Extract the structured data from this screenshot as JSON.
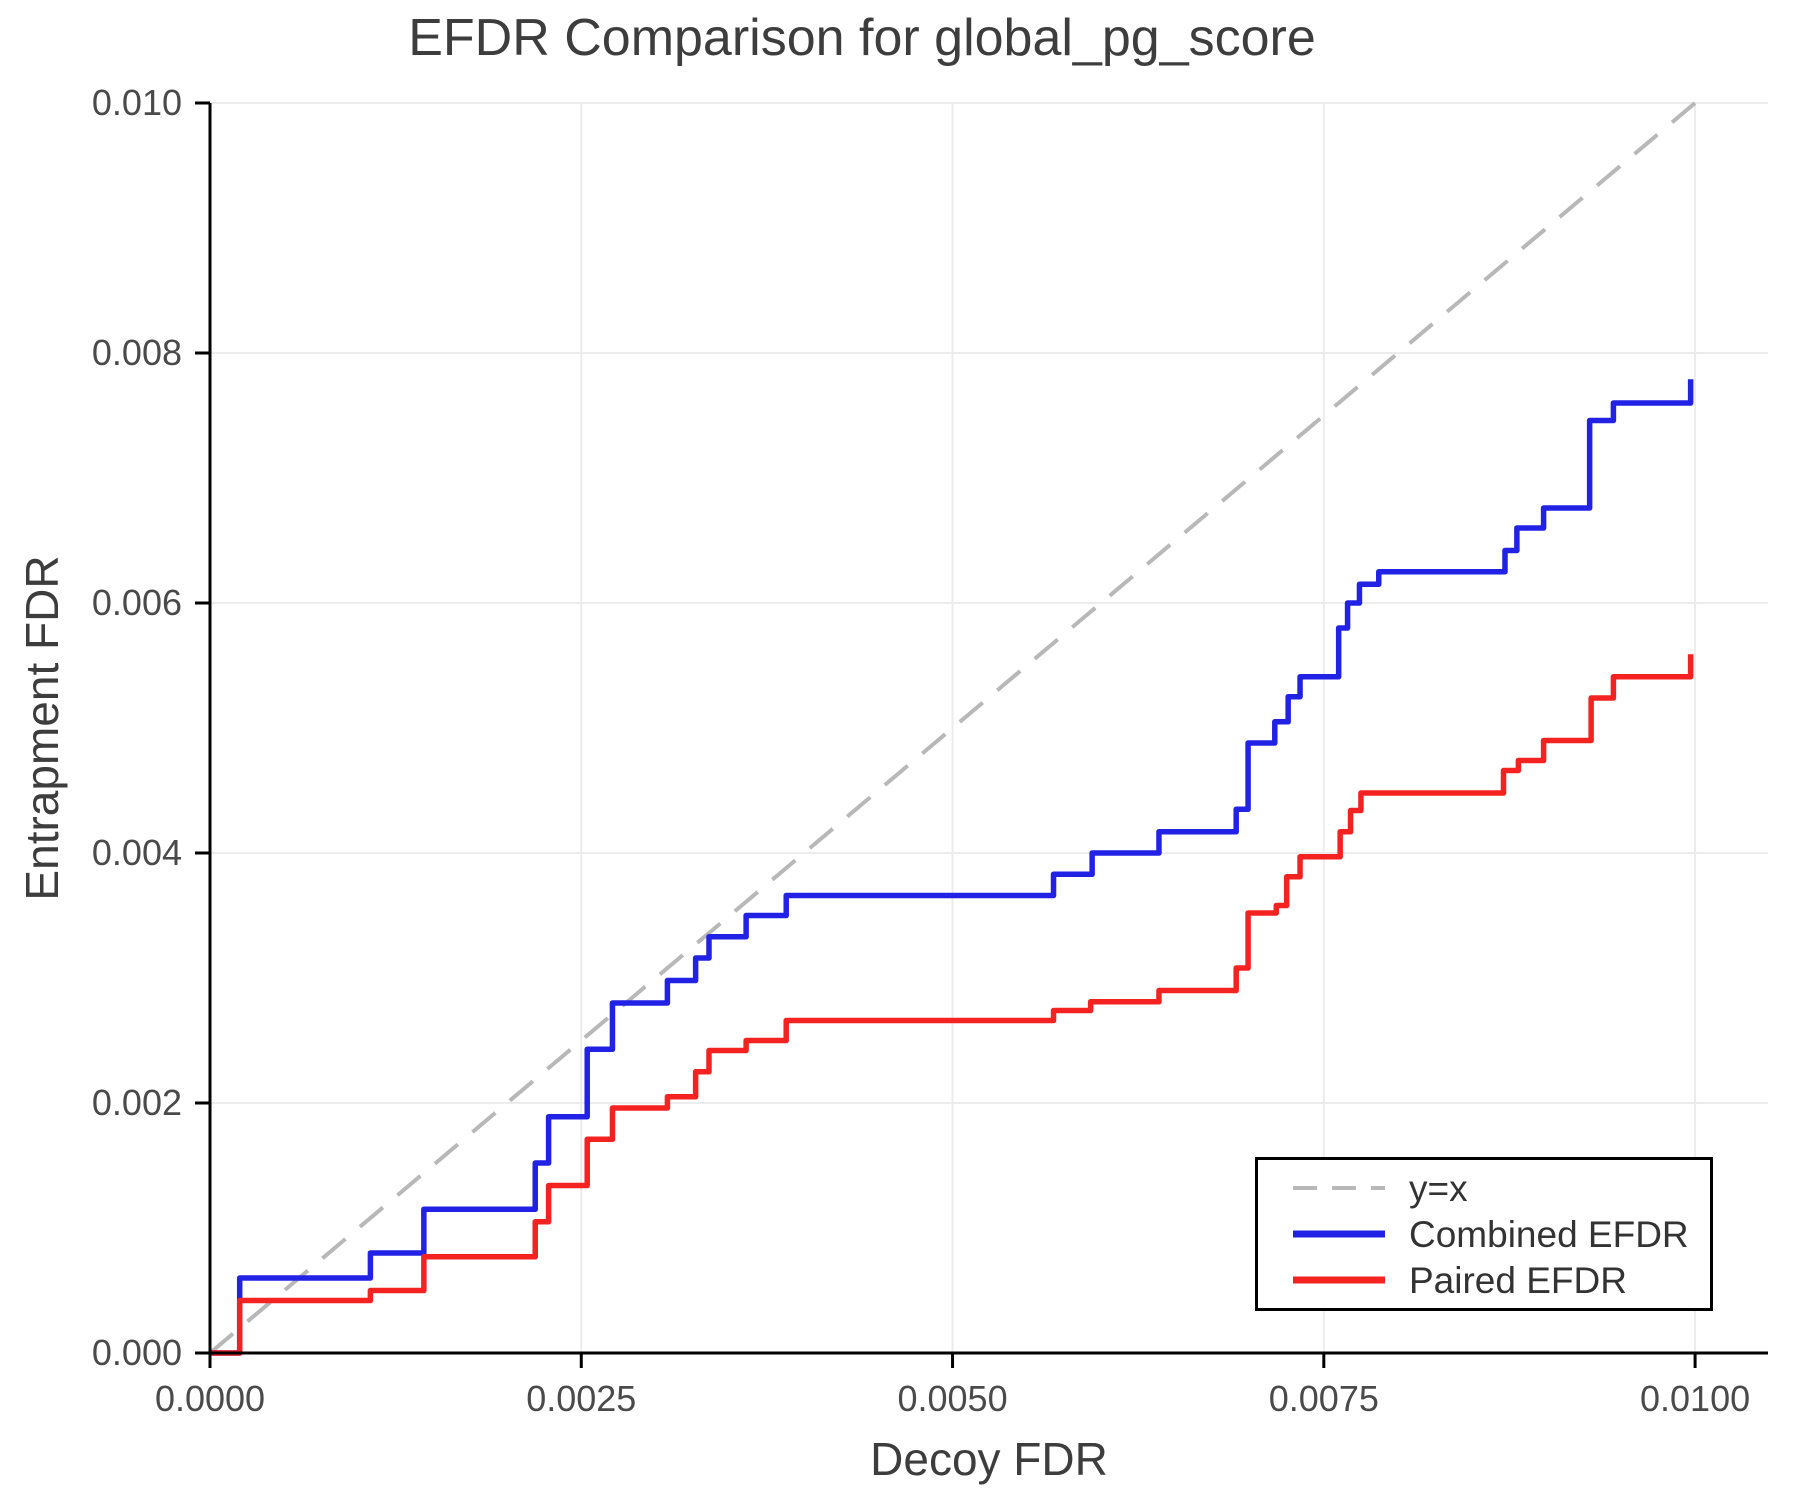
{
  "colors": {
    "combined": "#2222e6",
    "paired": "#f52222",
    "identity": "#b8b8b8",
    "grid": "#ececec",
    "spine": "#000000",
    "tick_label": "#4a4a4a"
  },
  "legend": {
    "items": [
      {
        "label": "y=x"
      },
      {
        "label": "Combined EFDR"
      },
      {
        "label": "Paired EFDR"
      }
    ]
  },
  "chart_data": {
    "type": "line",
    "title": "EFDR Comparison for global_pg_score",
    "xlabel": "Decoy FDR",
    "ylabel": "Entrapment FDR",
    "xlim": [
      0,
      0.0105
    ],
    "ylim": [
      0,
      0.01
    ],
    "grid": true,
    "legend_position": "lower right",
    "xticks": {
      "values": [
        0,
        0.0025,
        0.005,
        0.0075,
        0.01
      ],
      "labels": [
        "0.0000",
        "0.0025",
        "0.0050",
        "0.0075",
        "0.0100"
      ]
    },
    "yticks": {
      "values": [
        0,
        0.002,
        0.004,
        0.006,
        0.008,
        0.01
      ],
      "labels": [
        "0.000",
        "0.002",
        "0.004",
        "0.006",
        "0.008",
        "0.010"
      ]
    },
    "series": [
      {
        "name": "y=x",
        "style": "dashed",
        "color_key": "identity",
        "points": [
          [
            0,
            0
          ],
          [
            0.01,
            0.01
          ]
        ]
      },
      {
        "name": "Combined EFDR",
        "style": "step",
        "color_key": "combined",
        "steps": [
          [
            0,
            0
          ],
          [
            0.0002,
            0.0006
          ],
          [
            0.00108,
            0.0008
          ],
          [
            0.00144,
            0.00115
          ],
          [
            0.00219,
            0.00152
          ],
          [
            0.00228,
            0.00189
          ],
          [
            0.00254,
            0.00243
          ],
          [
            0.00271,
            0.0028
          ],
          [
            0.00308,
            0.00298
          ],
          [
            0.00327,
            0.00316
          ],
          [
            0.00336,
            0.00333
          ],
          [
            0.00361,
            0.0035
          ],
          [
            0.00388,
            0.00366
          ],
          [
            0.00568,
            0.00383
          ],
          [
            0.00594,
            0.004
          ],
          [
            0.00639,
            0.00417
          ],
          [
            0.00691,
            0.00435
          ],
          [
            0.00699,
            0.00488
          ],
          [
            0.00717,
            0.00505
          ],
          [
            0.00726,
            0.00525
          ],
          [
            0.00734,
            0.00541
          ],
          [
            0.0076,
            0.0058
          ],
          [
            0.00766,
            0.006
          ],
          [
            0.00774,
            0.00615
          ],
          [
            0.00787,
            0.00625
          ],
          [
            0.00872,
            0.00642
          ],
          [
            0.0088,
            0.0066
          ],
          [
            0.00898,
            0.00676
          ],
          [
            0.00929,
            0.00746
          ],
          [
            0.00945,
            0.0076
          ],
          [
            0.00997,
            0.00779
          ]
        ]
      },
      {
        "name": "Paired EFDR",
        "style": "step",
        "color_key": "paired",
        "steps": [
          [
            0,
            0
          ],
          [
            0.0002,
            0.00042
          ],
          [
            0.00108,
            0.0005
          ],
          [
            0.00144,
            0.00077
          ],
          [
            0.00219,
            0.00105
          ],
          [
            0.00228,
            0.00134
          ],
          [
            0.00254,
            0.00171
          ],
          [
            0.00271,
            0.00196
          ],
          [
            0.00308,
            0.00205
          ],
          [
            0.00327,
            0.00225
          ],
          [
            0.00336,
            0.00242
          ],
          [
            0.00361,
            0.0025
          ],
          [
            0.00388,
            0.00266
          ],
          [
            0.00568,
            0.00274
          ],
          [
            0.00593,
            0.00281
          ],
          [
            0.00639,
            0.0029
          ],
          [
            0.00691,
            0.00308
          ],
          [
            0.00699,
            0.00352
          ],
          [
            0.00718,
            0.00358
          ],
          [
            0.00725,
            0.00381
          ],
          [
            0.00734,
            0.00397
          ],
          [
            0.00761,
            0.00417
          ],
          [
            0.00768,
            0.00434
          ],
          [
            0.00775,
            0.00448
          ],
          [
            0.00871,
            0.00466
          ],
          [
            0.00881,
            0.00474
          ],
          [
            0.00898,
            0.0049
          ],
          [
            0.0093,
            0.00524
          ],
          [
            0.00945,
            0.00541
          ],
          [
            0.00997,
            0.00559
          ]
        ]
      }
    ]
  }
}
